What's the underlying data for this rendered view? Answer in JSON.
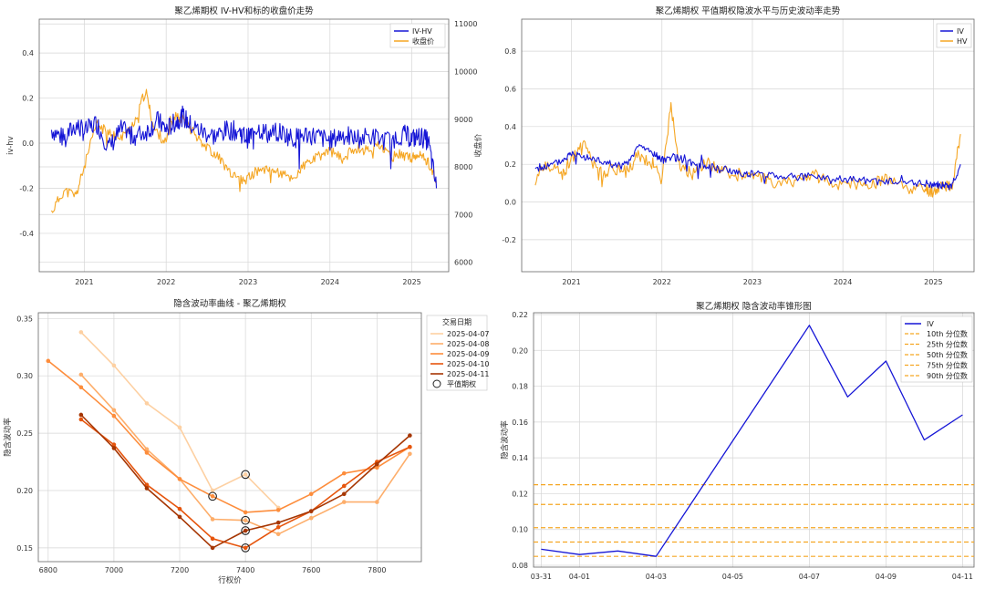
{
  "chart_data": [
    {
      "type": "line",
      "title": "聚乙烯期权 IV-HV和标的收盘价走势",
      "ylabel": "iv-hv",
      "y2label": "收盘价",
      "ylim": [
        -0.57,
        0.55
      ],
      "y2lim": [
        5800,
        11100
      ],
      "yticks": [
        "0.4",
        "0.2",
        "0.0",
        "-0.2",
        "-0.4"
      ],
      "y2ticks": [
        "11000",
        "10000",
        "9000",
        "8000",
        "7000",
        "6000"
      ],
      "xticks": [
        "2021",
        "2022",
        "2023",
        "2024",
        "2025"
      ],
      "legend_position": "top-right",
      "legend": [
        "IV-HV",
        "收盘价"
      ],
      "grid": true,
      "colors": {
        "series1": "#1515d6",
        "series2": "#f5a623",
        "axis2": "#e02020",
        "axis1": "#3a78b5"
      },
      "series": [
        {
          "name": "IV-HV",
          "x": [
            2020.6,
            2020.75,
            2020.9,
            2021.0,
            2021.15,
            2021.3,
            2021.45,
            2021.6,
            2021.75,
            2021.9,
            2022.0,
            2022.1,
            2022.2,
            2022.3,
            2022.45,
            2022.6,
            2022.75,
            2022.9,
            2023.0,
            2023.1,
            2023.25,
            2023.4,
            2023.55,
            2023.7,
            2023.85,
            2024.0,
            2024.15,
            2024.3,
            2024.5,
            2024.7,
            2024.9,
            2025.0,
            2025.1,
            2025.2,
            2025.3
          ],
          "values": [
            0.06,
            0.02,
            0.08,
            0.05,
            0.09,
            -0.02,
            0.06,
            0.03,
            0.05,
            0.1,
            0.06,
            0.09,
            0.12,
            0.08,
            0.05,
            0.03,
            0.06,
            0.05,
            0.02,
            0.07,
            0.04,
            0.05,
            0.02,
            0.04,
            0.03,
            0.01,
            0.04,
            0.02,
            0.03,
            0.01,
            0.04,
            0.02,
            0.03,
            0.01,
            -0.2
          ]
        },
        {
          "name": "收盘价",
          "x": [
            2020.6,
            2020.75,
            2020.9,
            2021.0,
            2021.15,
            2021.3,
            2021.45,
            2021.6,
            2021.75,
            2021.85,
            2022.0,
            2022.1,
            2022.2,
            2022.35,
            2022.5,
            2022.65,
            2022.8,
            2022.95,
            2023.1,
            2023.25,
            2023.4,
            2023.55,
            2023.7,
            2023.85,
            2024.0,
            2024.15,
            2024.3,
            2024.45,
            2024.6,
            2024.75,
            2024.9,
            2025.0,
            2025.1,
            2025.2,
            2025.3
          ],
          "values": [
            7050,
            7500,
            7400,
            8000,
            8900,
            8700,
            8600,
            8900,
            9600,
            8800,
            8500,
            9100,
            9000,
            8700,
            8400,
            8200,
            7800,
            7700,
            7900,
            8000,
            7850,
            7750,
            8050,
            8200,
            8350,
            8150,
            8400,
            8350,
            8450,
            8200,
            8300,
            8150,
            8250,
            8100,
            7700
          ]
        }
      ]
    },
    {
      "type": "line",
      "title": "聚乙烯期权 平值期权隐波水平与历史波动率走势",
      "ylim": [
        -0.37,
        0.97
      ],
      "yticks": [
        "0.8",
        "0.6",
        "0.4",
        "0.2",
        "0.0",
        "-0.2"
      ],
      "xticks": [
        "2021",
        "2022",
        "2023",
        "2024",
        "2025"
      ],
      "legend_position": "top-right",
      "legend": [
        "IV",
        "HV"
      ],
      "grid": true,
      "colors": {
        "IV": "#1515d6",
        "HV": "#f5a623"
      },
      "series": [
        {
          "name": "IV",
          "x": [
            2020.6,
            2020.75,
            2020.9,
            2021.0,
            2021.15,
            2021.3,
            2021.45,
            2021.6,
            2021.75,
            2021.9,
            2022.0,
            2022.1,
            2022.2,
            2022.35,
            2022.5,
            2022.65,
            2022.8,
            2022.95,
            2023.1,
            2023.3,
            2023.5,
            2023.7,
            2023.9,
            2024.1,
            2024.3,
            2024.5,
            2024.7,
            2024.9,
            2025.0,
            2025.1,
            2025.2,
            2025.3
          ],
          "values": [
            0.18,
            0.19,
            0.22,
            0.26,
            0.24,
            0.22,
            0.2,
            0.19,
            0.3,
            0.26,
            0.22,
            0.24,
            0.23,
            0.2,
            0.19,
            0.18,
            0.16,
            0.15,
            0.15,
            0.14,
            0.13,
            0.14,
            0.12,
            0.12,
            0.11,
            0.11,
            0.1,
            0.1,
            0.09,
            0.09,
            0.08,
            0.2
          ]
        },
        {
          "name": "HV",
          "x": [
            2020.6,
            2020.75,
            2020.9,
            2021.0,
            2021.15,
            2021.3,
            2021.45,
            2021.6,
            2021.75,
            2021.9,
            2022.0,
            2022.1,
            2022.2,
            2022.35,
            2022.5,
            2022.65,
            2022.8,
            2022.95,
            2023.1,
            2023.3,
            2023.5,
            2023.7,
            2023.9,
            2024.1,
            2024.3,
            2024.5,
            2024.7,
            2024.9,
            2025.0,
            2025.1,
            2025.2,
            2025.3
          ],
          "values": [
            0.12,
            0.2,
            0.14,
            0.24,
            0.3,
            0.15,
            0.18,
            0.16,
            0.25,
            0.2,
            0.13,
            0.5,
            0.18,
            0.15,
            0.21,
            0.17,
            0.14,
            0.16,
            0.12,
            0.1,
            0.12,
            0.14,
            0.08,
            0.1,
            0.09,
            0.12,
            0.08,
            0.07,
            0.06,
            0.1,
            0.07,
            0.36
          ]
        }
      ]
    },
    {
      "type": "line",
      "title": "隐含波动率曲线 - 聚乙烯期权",
      "xlabel": "行权价",
      "ylabel": "隐含波动率",
      "xlim": [
        6770,
        7935
      ],
      "ylim": [
        0.138,
        0.355
      ],
      "xticks": [
        6800,
        7000,
        7200,
        7400,
        7600,
        7800
      ],
      "yticks": [
        0.15,
        0.2,
        0.25,
        0.3,
        0.35
      ],
      "ytick_labels": [
        "0.15",
        "0.20",
        "0.25",
        "0.30",
        "0.35"
      ],
      "legend_title": "交易日期",
      "legend_position": "top-right",
      "atm_label": "平值期权",
      "grid": true,
      "x": [
        6800,
        6900,
        7000,
        7100,
        7200,
        7300,
        7400,
        7500,
        7600,
        7700,
        7800,
        7900
      ],
      "series": [
        {
          "name": "2025-04-07",
          "color": "#fdd0a2",
          "values": [
            null,
            0.338,
            0.309,
            0.276,
            0.255,
            0.2,
            0.214,
            0.185,
            null,
            null,
            null,
            null
          ]
        },
        {
          "name": "2025-04-08",
          "color": "#fdae6b",
          "values": [
            null,
            0.301,
            0.27,
            0.236,
            0.21,
            0.175,
            0.174,
            0.162,
            0.176,
            0.19,
            0.19,
            0.232
          ]
        },
        {
          "name": "2025-04-09",
          "color": "#fd8d3c",
          "values": [
            0.313,
            0.29,
            0.265,
            0.233,
            0.21,
            0.195,
            0.181,
            0.183,
            0.197,
            0.215,
            0.22,
            0.238
          ]
        },
        {
          "name": "2025-04-10",
          "color": "#e6550d",
          "values": [
            null,
            0.262,
            0.24,
            0.205,
            0.184,
            0.158,
            0.15,
            0.168,
            0.182,
            0.204,
            0.225,
            0.238
          ]
        },
        {
          "name": "2025-04-11",
          "color": "#a63603",
          "values": [
            null,
            0.266,
            0.237,
            0.202,
            0.177,
            0.15,
            0.165,
            0.172,
            0.182,
            0.197,
            0.223,
            0.248
          ]
        }
      ],
      "atm_points": [
        {
          "x": 7400,
          "y": 0.214
        },
        {
          "x": 7300,
          "y": 0.195
        },
        {
          "x": 7400,
          "y": 0.174
        },
        {
          "x": 7400,
          "y": 0.165
        },
        {
          "x": 7400,
          "y": 0.15
        }
      ]
    },
    {
      "type": "line",
      "title": "聚乙烯期权 隐含波动率锥形图",
      "ylabel": "隐含波动率",
      "ylim": [
        0.079,
        0.221
      ],
      "yticks": [
        0.08,
        0.1,
        0.12,
        0.14,
        0.16,
        0.18,
        0.2,
        0.22
      ],
      "ytick_labels": [
        "0.08",
        "0.10",
        "0.12",
        "0.14",
        "0.16",
        "0.18",
        "0.20",
        "0.22"
      ],
      "xticks": [
        {
          "label": "03-31",
          "x": 0
        },
        {
          "label": "04-01",
          "x": 1
        },
        {
          "label": "04-03",
          "x": 3
        },
        {
          "label": "04-05",
          "x": 5
        },
        {
          "label": "04-07",
          "x": 7
        },
        {
          "label": "04-09",
          "x": 9
        },
        {
          "label": "04-11",
          "x": 11
        }
      ],
      "xlim": [
        -0.2,
        11.3
      ],
      "legend_position": "top-right",
      "grid": true,
      "iv": {
        "name": "IV",
        "color": "#1515d6",
        "x": [
          0,
          1,
          2,
          3,
          7,
          8,
          9,
          10,
          11
        ],
        "values": [
          0.089,
          0.086,
          0.088,
          0.085,
          0.214,
          0.174,
          0.194,
          0.15,
          0.164
        ]
      },
      "percentiles": [
        {
          "name": "10th 分位数",
          "value": 0.085
        },
        {
          "name": "25th 分位数",
          "value": 0.093
        },
        {
          "name": "50th 分位数",
          "value": 0.101
        },
        {
          "name": "75th 分位数",
          "value": 0.114
        },
        {
          "name": "90th 分位数",
          "value": 0.125
        }
      ],
      "percentile_color": "#f5a623"
    }
  ]
}
